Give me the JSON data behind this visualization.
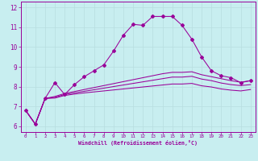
{
  "xlabel": "Windchill (Refroidissement éolien,°C)",
  "background_color": "#c8eef0",
  "line_color": "#990099",
  "grid_color": "#b8dde0",
  "xlim": [
    -0.5,
    23.5
  ],
  "ylim": [
    5.7,
    12.3
  ],
  "xticks": [
    0,
    1,
    2,
    3,
    4,
    5,
    6,
    7,
    8,
    9,
    10,
    11,
    12,
    13,
    14,
    15,
    16,
    17,
    18,
    19,
    20,
    21,
    22,
    23
  ],
  "yticks": [
    6,
    7,
    8,
    9,
    10,
    11,
    12
  ],
  "series_main_x": [
    0,
    1,
    2,
    3,
    4,
    5,
    6,
    7,
    8,
    9,
    10,
    11,
    12,
    13,
    14,
    15,
    16,
    17,
    18,
    19,
    20,
    21,
    22,
    23
  ],
  "series_main_y": [
    6.8,
    6.1,
    7.4,
    8.2,
    7.6,
    8.1,
    8.5,
    8.8,
    9.1,
    9.8,
    10.6,
    11.15,
    11.1,
    11.55,
    11.55,
    11.55,
    11.1,
    10.4,
    9.5,
    8.8,
    8.55,
    8.45,
    8.2,
    8.3
  ],
  "series2_x": [
    0,
    1,
    2,
    3,
    4,
    5,
    6,
    7,
    8,
    9,
    10,
    11,
    12,
    13,
    14,
    15,
    16,
    17,
    18,
    19,
    20,
    21,
    22,
    23
  ],
  "series2_y": [
    6.8,
    6.1,
    7.4,
    7.5,
    7.65,
    7.75,
    7.85,
    7.95,
    8.05,
    8.15,
    8.25,
    8.35,
    8.45,
    8.55,
    8.65,
    8.72,
    8.72,
    8.75,
    8.6,
    8.5,
    8.4,
    8.3,
    8.22,
    8.3
  ],
  "series3_x": [
    0,
    1,
    2,
    3,
    4,
    5,
    6,
    7,
    8,
    9,
    10,
    11,
    12,
    13,
    14,
    15,
    16,
    17,
    18,
    19,
    20,
    21,
    22,
    23
  ],
  "series3_y": [
    6.8,
    6.1,
    7.4,
    7.45,
    7.6,
    7.68,
    7.76,
    7.84,
    7.92,
    8.0,
    8.08,
    8.16,
    8.24,
    8.32,
    8.4,
    8.48,
    8.48,
    8.52,
    8.38,
    8.3,
    8.18,
    8.1,
    8.05,
    8.1
  ],
  "series4_x": [
    0,
    1,
    2,
    3,
    4,
    5,
    6,
    7,
    8,
    9,
    10,
    11,
    12,
    13,
    14,
    15,
    16,
    17,
    18,
    19,
    20,
    21,
    22,
    23
  ],
  "series4_y": [
    6.8,
    6.1,
    7.4,
    7.42,
    7.55,
    7.62,
    7.68,
    7.73,
    7.78,
    7.83,
    7.88,
    7.93,
    7.98,
    8.03,
    8.08,
    8.13,
    8.13,
    8.16,
    8.04,
    7.98,
    7.88,
    7.82,
    7.78,
    7.85
  ]
}
